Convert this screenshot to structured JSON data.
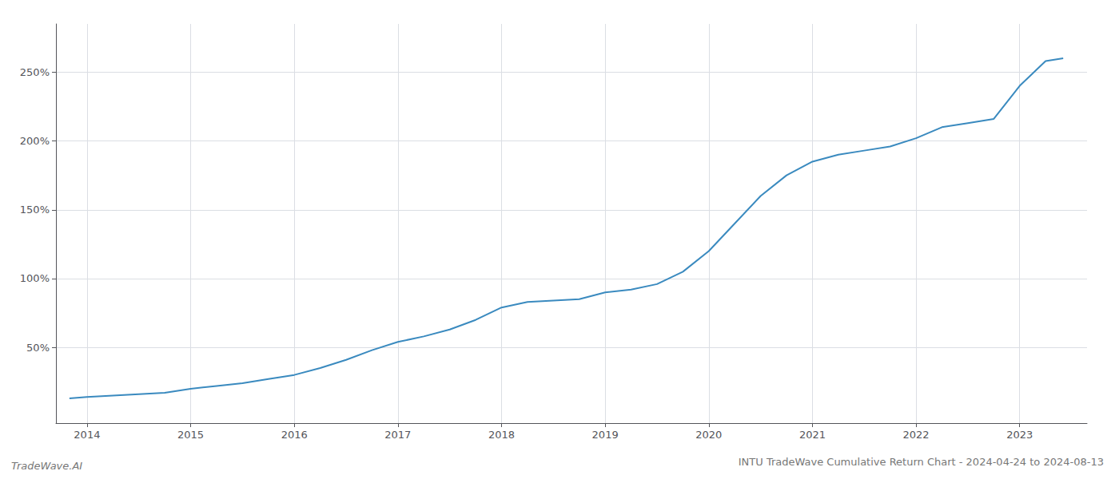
{
  "chart_data": {
    "type": "line",
    "title": "INTU TradeWave Cumulative Return Chart - 2024-04-24 to 2024-08-13",
    "annotations": [
      "TradeWave.AI"
    ],
    "x": [
      2013.83,
      2014.0,
      2014.25,
      2014.5,
      2014.75,
      2015.0,
      2015.25,
      2015.5,
      2015.75,
      2016.0,
      2016.25,
      2016.5,
      2016.75,
      2017.0,
      2017.25,
      2017.5,
      2017.75,
      2018.0,
      2018.25,
      2018.5,
      2018.75,
      2019.0,
      2019.25,
      2019.5,
      2019.75,
      2020.0,
      2020.25,
      2020.5,
      2020.75,
      2021.0,
      2021.25,
      2021.5,
      2021.75,
      2022.0,
      2022.25,
      2022.5,
      2022.75,
      2023.0,
      2023.25,
      2023.42
    ],
    "values": [
      13,
      14,
      15,
      16,
      17,
      20,
      22,
      24,
      27,
      30,
      35,
      41,
      48,
      54,
      58,
      63,
      70,
      79,
      83,
      84,
      85,
      90,
      92,
      96,
      105,
      120,
      140,
      160,
      175,
      185,
      190,
      193,
      196,
      202,
      210,
      213,
      216,
      240,
      258,
      260
    ],
    "color": "#3a8abf",
    "xlim": [
      2013.7,
      2023.65
    ],
    "ylim": [
      -5,
      285
    ],
    "xticks": [
      2014,
      2015,
      2016,
      2017,
      2018,
      2019,
      2020,
      2021,
      2022,
      2023
    ],
    "yticks": [
      {
        "value": 50,
        "label": "50%"
      },
      {
        "value": 100,
        "label": "100%"
      },
      {
        "value": 150,
        "label": "150%"
      },
      {
        "value": 200,
        "label": "200%"
      },
      {
        "value": 250,
        "label": "250%"
      }
    ],
    "grid": true
  }
}
